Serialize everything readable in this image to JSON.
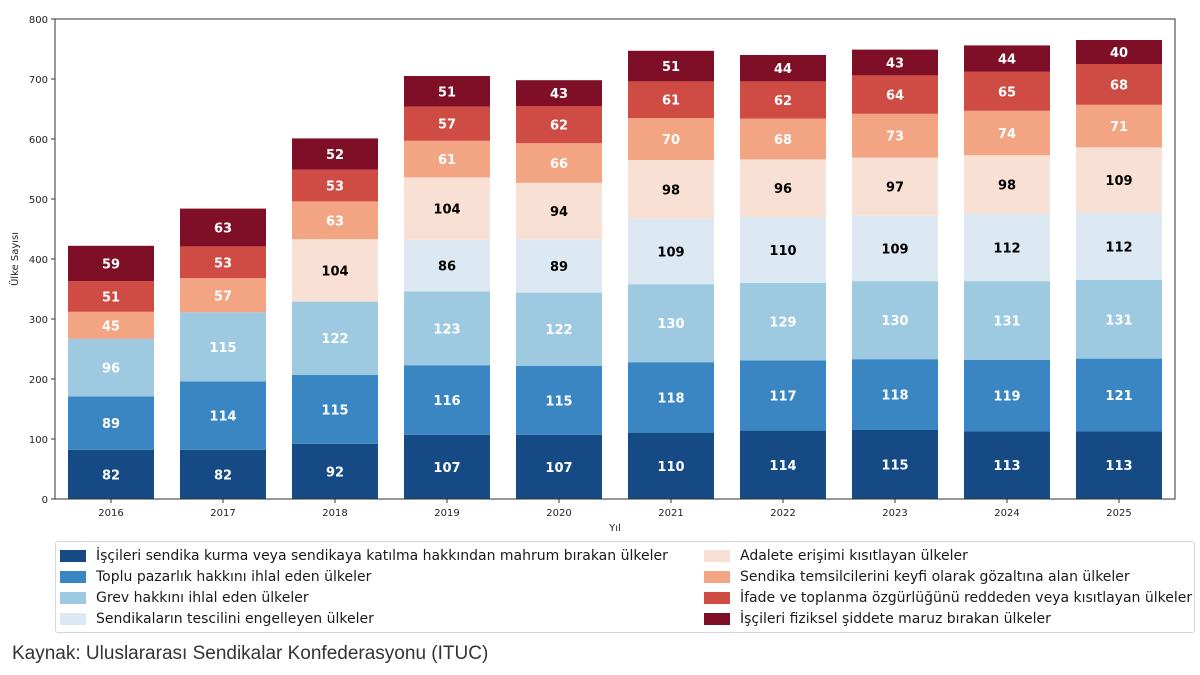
{
  "chart_data": {
    "type": "bar",
    "stacked": true,
    "xlabel": "Yıl",
    "ylabel": "Ülke Sayısı",
    "ylim": [
      0,
      800
    ],
    "yticks": [
      0,
      100,
      200,
      300,
      400,
      500,
      600,
      700,
      800
    ],
    "grid": false,
    "legend_position": "bottom",
    "categories": [
      "2016",
      "2017",
      "2018",
      "2019",
      "2020",
      "2021",
      "2022",
      "2023",
      "2024",
      "2025"
    ],
    "series": [
      {
        "name": "İşçileri sendika kurma veya sendikaya katılma hakkından mahrum bırakan ülkeler",
        "color": "#154a85",
        "label_color": "#ffffff",
        "values": [
          82,
          82,
          92,
          107,
          107,
          110,
          114,
          115,
          113,
          113
        ]
      },
      {
        "name": "Toplu pazarlık hakkını ihlal eden ülkeler",
        "color": "#3a86c2",
        "label_color": "#ffffff",
        "values": [
          89,
          114,
          115,
          116,
          115,
          118,
          117,
          118,
          119,
          121
        ]
      },
      {
        "name": "Grev hakkını ihlal eden ülkeler",
        "color": "#9ecae1",
        "label_color": "#ffffff",
        "values": [
          96,
          115,
          122,
          123,
          122,
          130,
          129,
          130,
          131,
          131
        ]
      },
      {
        "name": "Sendikaların tescilini engelleyen ülkeler",
        "color": "#dce9f3",
        "label_color": "#000000",
        "values": [
          null,
          null,
          null,
          86,
          89,
          109,
          110,
          109,
          112,
          112
        ]
      },
      {
        "name": "Adalete erişimi kısıtlayan ülkeler",
        "color": "#f9e0d4",
        "label_color": "#000000",
        "values": [
          null,
          null,
          104,
          104,
          94,
          98,
          96,
          97,
          98,
          109
        ]
      },
      {
        "name": "Sendika temsilcilerini keyfi olarak gözaltına alan ülkeler",
        "color": "#f3a583",
        "label_color": "#ffffff",
        "values": [
          45,
          57,
          63,
          61,
          66,
          70,
          68,
          73,
          74,
          71
        ]
      },
      {
        "name": "İfade ve toplanma özgürlüğünü reddeden veya kısıtlayan ülkeler",
        "color": "#cf4c45",
        "label_color": "#ffffff",
        "values": [
          51,
          53,
          53,
          57,
          62,
          61,
          62,
          64,
          65,
          68
        ]
      },
      {
        "name": "İşçileri fiziksel şiddete maruz bırakan ülkeler",
        "color": "#7f0f27",
        "label_color": "#ffffff",
        "values": [
          59,
          63,
          52,
          51,
          43,
          51,
          44,
          43,
          44,
          40
        ]
      }
    ]
  },
  "legend": {
    "left_column": [
      0,
      1,
      2,
      3
    ],
    "right_column": [
      4,
      5,
      6,
      7
    ]
  },
  "source_text": "Kaynak: Uluslararası Sendikalar Konfederasyonu (ITUC)"
}
